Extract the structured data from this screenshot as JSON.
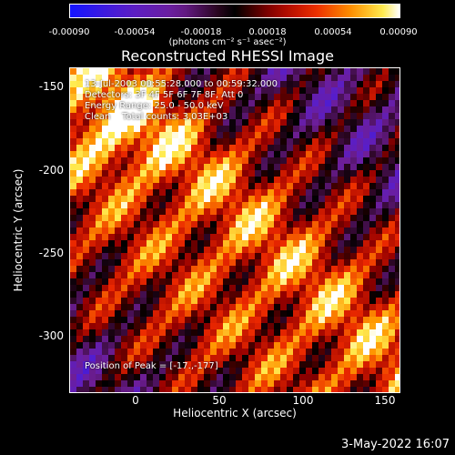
{
  "colorbar": {
    "ticks": [
      "-0.00090",
      "-0.00054",
      "-0.00018",
      "0.00018",
      "0.00054",
      "0.00090"
    ],
    "units": "(photons cm⁻² s⁻¹ asec⁻²)"
  },
  "title": "Reconstructed RHESSI Image",
  "annotations": {
    "time": "13-Jul-2003 00:55:28.000 to 00:59:32.000",
    "detectors": "Detectors: 3F 4F 5F 6F 7F 8F, Att 0",
    "energy": "Energy Range: 25.0 - 50.0 keV",
    "clean": "Clean    Total counts: 3.03E+03",
    "peak": "Position of Peak = [-17.,-177]"
  },
  "axes": {
    "xlabel": "Heliocentric X (arcsec)",
    "ylabel": "Heliocentric Y (arcsec)",
    "xticks": [
      "0",
      "50",
      "100",
      "150"
    ],
    "yticks": [
      "-150",
      "-200",
      "-250",
      "-300"
    ]
  },
  "footer_date": "3-May-2022 16:07"
}
